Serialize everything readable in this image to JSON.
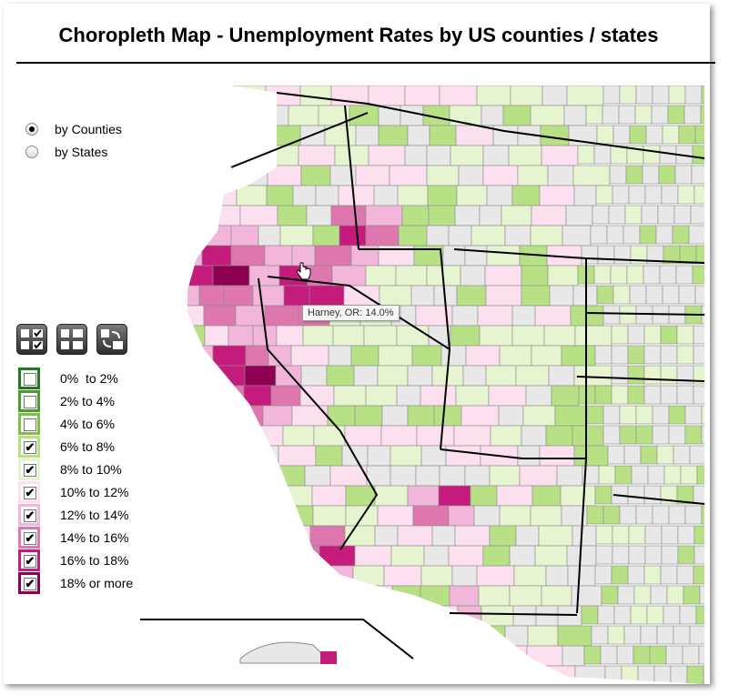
{
  "title": "Choropleth Map - Unemployment Rates by US counties / states",
  "view_options": [
    {
      "label": "by Counties",
      "selected": true
    },
    {
      "label": "by States",
      "selected": false
    }
  ],
  "tools": [
    "select-all-icon",
    "select-range-icon",
    "invert-selection-icon"
  ],
  "legend": [
    {
      "label": "0%  to 2%",
      "color": "#1f7a1f",
      "checked": false
    },
    {
      "label": "2% to 4%",
      "color": "#4d9a2e",
      "checked": false
    },
    {
      "label": "4% to 6%",
      "color": "#7fbf45",
      "checked": false
    },
    {
      "label": "6% to 8%",
      "color": "#b8e186",
      "checked": true
    },
    {
      "label": "8% to 10%",
      "color": "#e6f5d0",
      "checked": true
    },
    {
      "label": "10% to 12%",
      "color": "#fde0ef",
      "checked": true
    },
    {
      "label": "12% to 14%",
      "color": "#f1b6da",
      "checked": true
    },
    {
      "label": "14% to 16%",
      "color": "#de77ae",
      "checked": true
    },
    {
      "label": "16% to 18%",
      "color": "#c51b7d",
      "checked": true
    },
    {
      "label": "18% or more",
      "color": "#8e0152",
      "checked": true
    }
  ],
  "tooltip": "Harney, OR: 14.0%",
  "colors": {
    "no_data": "#e8e8e8",
    "border": "#8c8c8c"
  }
}
